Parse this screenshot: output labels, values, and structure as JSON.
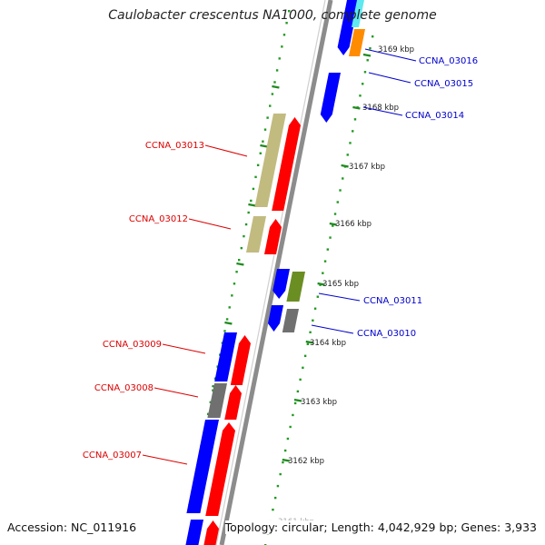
{
  "title": "Caulobacter crescentus NA1000, complete genome",
  "footer": {
    "accession": "Accession: NC_011916",
    "summary": "Topology: circular; Length: 4,042,929 bp; Genes: 3,933"
  },
  "ticks": [
    {
      "label": "3169 kbp"
    },
    {
      "label": "3168 kbp"
    },
    {
      "label": "3167 kbp"
    },
    {
      "label": "3166 kbp"
    },
    {
      "label": "3165 kbp"
    },
    {
      "label": "3164 kbp"
    },
    {
      "label": "3163 kbp"
    },
    {
      "label": "3162 kbp"
    },
    {
      "label": "3161 kbp"
    }
  ],
  "genes": {
    "reverse_strand": [
      "CCNA_03016",
      "CCNA_03015",
      "CCNA_03014",
      "CCNA_03011",
      "CCNA_03010"
    ],
    "forward_strand": [
      "CCNA_03013",
      "CCNA_03012",
      "CCNA_03009",
      "CCNA_03008",
      "CCNA_03007"
    ]
  },
  "colors": {
    "forward_label": "#dd0000",
    "reverse_label": "#0000cc",
    "red_gene": "#ff0000",
    "blue_gene": "#0000ff",
    "khaki_gene": "#c2bb80",
    "gray_gene": "#707070",
    "olive_gene": "#6b8e23",
    "orange_gene": "#ff8c00",
    "cyan_gene": "#5fe8f0",
    "tick_green": "#1f8a1f",
    "backbone": "#8c8c8c"
  }
}
